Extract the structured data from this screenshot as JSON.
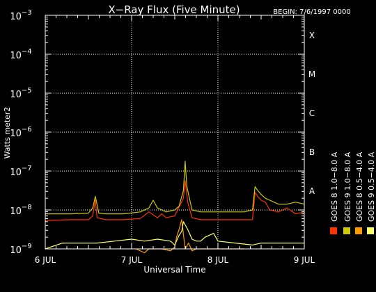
{
  "chart_data": {
    "type": "line",
    "title": "X−Ray Flux (Five Minute)",
    "begin_label": "BEGIN: 7/6/1997 0000",
    "xlabel": "Universal Time",
    "ylabel": "Watts meter2",
    "y_scale": "log",
    "ylim_exponent": [
      -9,
      -3
    ],
    "y_ticks": [
      {
        "base": "10",
        "exp": "−3",
        "value_exp": -3
      },
      {
        "base": "10",
        "exp": "−4",
        "value_exp": -4
      },
      {
        "base": "10",
        "exp": "−5",
        "value_exp": -5
      },
      {
        "base": "10",
        "exp": "−6",
        "value_exp": -6
      },
      {
        "base": "10",
        "exp": "−7",
        "value_exp": -7
      },
      {
        "base": "10",
        "exp": "−8",
        "value_exp": -8
      },
      {
        "base": "10",
        "exp": "−9",
        "value_exp": -9
      }
    ],
    "x_ticks": [
      {
        "label": "6 JUL",
        "day": 0
      },
      {
        "label": "7 JUL",
        "day": 1
      },
      {
        "label": "8 JUL",
        "day": 2
      },
      {
        "label": "9 JUL",
        "day": 3
      }
    ],
    "flare_classes": [
      {
        "label": "X",
        "value_exp": -3.5
      },
      {
        "label": "M",
        "value_exp": -4.5
      },
      {
        "label": "C",
        "value_exp": -5.5
      },
      {
        "label": "B",
        "value_exp": -6.5
      },
      {
        "label": "A",
        "value_exp": -7.5
      }
    ],
    "grid": true,
    "legend_position": "right, rotated",
    "series": [
      {
        "name": "GOES 8  1.0−8.0 A",
        "color": "#ff3300",
        "x_day": [
          0,
          0.3,
          0.5,
          0.55,
          0.58,
          0.6,
          0.7,
          0.9,
          1.1,
          1.2,
          1.3,
          1.35,
          1.4,
          1.5,
          1.6,
          1.62,
          1.65,
          1.7,
          1.8,
          2.0,
          2.2,
          2.4,
          2.43,
          2.46,
          2.5,
          2.55,
          2.6,
          2.7,
          2.8,
          2.9,
          3.0
        ],
        "y_log": [
          -8.27,
          -8.25,
          -8.25,
          -8.15,
          -7.75,
          -8.2,
          -8.25,
          -8.25,
          -8.22,
          -8.05,
          -8.2,
          -8.1,
          -8.2,
          -8.15,
          -7.7,
          -7.25,
          -7.8,
          -8.2,
          -8.25,
          -8.25,
          -8.25,
          -8.25,
          -7.55,
          -7.65,
          -7.75,
          -7.8,
          -8.0,
          -8.05,
          -7.95,
          -8.1,
          -8.05
        ]
      },
      {
        "name": "GOES 8  0.5−4.0 A",
        "color": "#ff9900",
        "x_day": [
          1.05,
          1.15,
          1.2,
          1.35,
          1.45,
          1.5,
          1.52,
          1.55,
          1.58,
          1.62,
          1.66,
          1.7,
          1.75,
          1.8,
          1.9,
          2.0,
          2.1,
          2.2,
          2.3
        ],
        "y_log": [
          -9.0,
          -9.1,
          -9.0,
          -9.0,
          -9.05,
          -8.95,
          -8.7,
          -8.5,
          -8.25,
          -9.0,
          -8.85,
          -9.05,
          -9.0,
          -9.0,
          -9.0,
          -9.0,
          -9.0,
          -9.0,
          -9.0
        ]
      },
      {
        "name": "GOES 9  1.0−8.0 A",
        "color": "#cccc00",
        "x_day": [
          0,
          0.3,
          0.5,
          0.55,
          0.58,
          0.62,
          0.7,
          0.9,
          1.1,
          1.2,
          1.25,
          1.3,
          1.35,
          1.4,
          1.5,
          1.55,
          1.6,
          1.62,
          1.64,
          1.68,
          1.7,
          1.8,
          1.9,
          2.1,
          2.3,
          2.4,
          2.43,
          2.46,
          2.5,
          2.55,
          2.6,
          2.7,
          2.8,
          2.9,
          3.0
        ],
        "y_log": [
          -8.1,
          -8.1,
          -8.08,
          -7.95,
          -7.65,
          -8.08,
          -8.1,
          -8.1,
          -8.05,
          -7.95,
          -7.75,
          -7.95,
          -8.0,
          -8.05,
          -8.0,
          -7.9,
          -7.5,
          -6.75,
          -7.4,
          -7.8,
          -8.0,
          -8.05,
          -8.05,
          -8.05,
          -8.05,
          -8.0,
          -7.4,
          -7.5,
          -7.6,
          -7.7,
          -7.75,
          -7.85,
          -7.85,
          -7.8,
          -7.85
        ]
      },
      {
        "name": "GOES 9  0.5−4.0 A",
        "color": "#ffff66",
        "x_day": [
          0,
          0.2,
          0.4,
          0.6,
          0.8,
          1.0,
          1.15,
          1.3,
          1.45,
          1.5,
          1.55,
          1.58,
          1.6,
          1.65,
          1.7,
          1.75,
          1.8,
          1.85,
          1.9,
          1.95,
          2.0,
          2.2,
          2.4,
          2.5,
          2.6,
          2.7,
          2.8,
          2.9,
          3.0
        ],
        "y_log": [
          -9.0,
          -8.85,
          -8.85,
          -8.85,
          -8.8,
          -8.75,
          -8.8,
          -8.75,
          -8.8,
          -8.9,
          -8.65,
          -8.55,
          -8.3,
          -8.5,
          -8.75,
          -8.8,
          -8.8,
          -8.7,
          -8.65,
          -8.6,
          -8.8,
          -8.85,
          -8.9,
          -8.85,
          -8.85,
          -8.85,
          -8.85,
          -8.85,
          -8.85
        ]
      }
    ]
  }
}
